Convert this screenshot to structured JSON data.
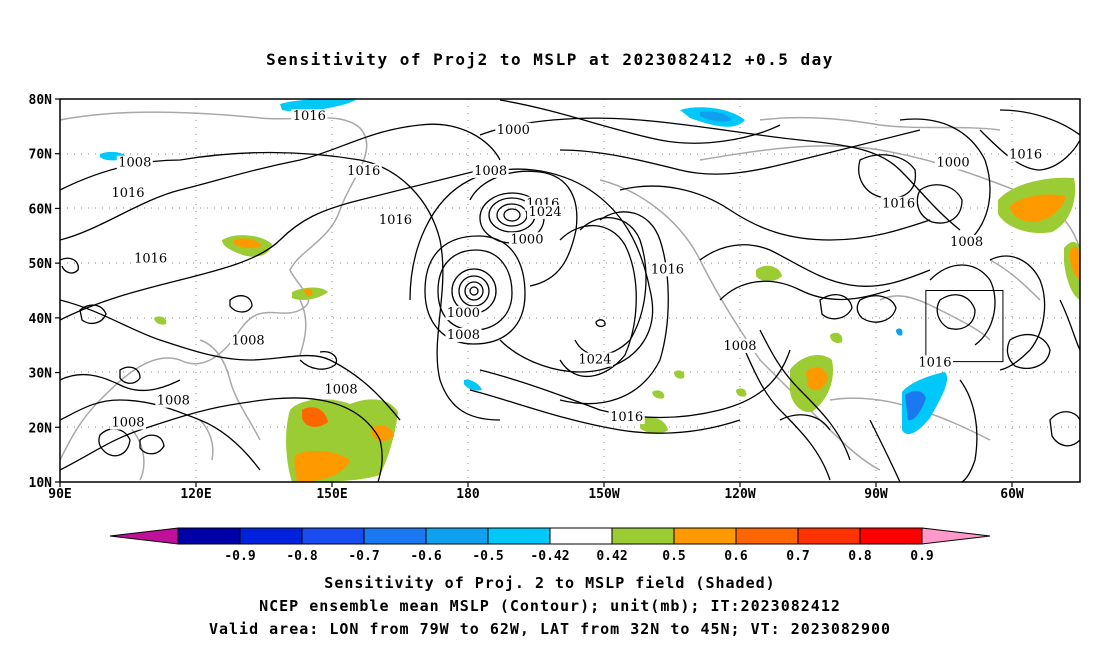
{
  "title": "Sensitivity of Proj2 to MSLP at 2023082412 +0.5 day",
  "lat_labels": [
    "80N",
    "70N",
    "60N",
    "50N",
    "40N",
    "30N",
    "20N",
    "10N"
  ],
  "lon_labels": [
    "90E",
    "120E",
    "150E",
    "180",
    "150W",
    "120W",
    "90W",
    "60W"
  ],
  "colorbar": {
    "labels": [
      "-0.9",
      "-0.8",
      "-0.7",
      "-0.6",
      "-0.5",
      "-0.42",
      "0.42",
      "0.5",
      "0.6",
      "0.7",
      "0.8",
      "0.9"
    ],
    "colors": [
      "#c0109a",
      "#0000a8",
      "#0022dd",
      "#1a4cf0",
      "#1a78f0",
      "#10a0f0",
      "#00c8f8",
      "#ffffff",
      "#9ccc33",
      "#ff9900",
      "#ff6600",
      "#ff3300",
      "#ff0000",
      "#ff99cc"
    ]
  },
  "contour_labels": [
    {
      "text": "1016",
      "lon": 145,
      "lat": 76.5
    },
    {
      "text": "1008",
      "lon": 106.5,
      "lat": 68
    },
    {
      "text": "1016",
      "lon": 157,
      "lat": 66.5
    },
    {
      "text": "1016",
      "lon": 105,
      "lat": 62.5
    },
    {
      "text": "1008",
      "lon": 185,
      "lat": 66.5
    },
    {
      "text": "1000",
      "lon": 190,
      "lat": 74
    },
    {
      "text": "1016",
      "lon": 164,
      "lat": 57.5
    },
    {
      "text": "1000",
      "lon": 193,
      "lat": 54
    },
    {
      "text": "1016",
      "lon": 196.5,
      "lat": 60.5
    },
    {
      "text": "1024",
      "lon": 197,
      "lat": 59
    },
    {
      "text": "1016",
      "lon": 110,
      "lat": 50.5
    },
    {
      "text": "1000",
      "lon": 179,
      "lat": 40.5
    },
    {
      "text": "1008",
      "lon": 179,
      "lat": 36.5
    },
    {
      "text": "1008",
      "lon": 131.5,
      "lat": 35.5
    },
    {
      "text": "1024",
      "lon": 208,
      "lat": 32
    },
    {
      "text": "1016",
      "lon": 224,
      "lat": 48.5
    },
    {
      "text": "1008",
      "lon": 240,
      "lat": 34.5
    },
    {
      "text": "1016",
      "lon": 275,
      "lat": 60.5
    },
    {
      "text": "1000",
      "lon": 287,
      "lat": 68
    },
    {
      "text": "1008",
      "lon": 290,
      "lat": 53.5
    },
    {
      "text": "1016",
      "lon": 303,
      "lat": 69.5
    },
    {
      "text": "1016",
      "lon": 283,
      "lat": 31.5
    },
    {
      "text": "1008",
      "lon": 152,
      "lat": 26.5
    },
    {
      "text": "1008",
      "lon": 115,
      "lat": 24.5
    },
    {
      "text": "1008",
      "lon": 105,
      "lat": 20.5
    },
    {
      "text": "1016",
      "lon": 215,
      "lat": 21.5
    }
  ],
  "valid_box": {
    "lon_min": -79,
    "lon_max": -62,
    "lat_min": 32,
    "lat_max": 45
  },
  "footer": [
    "Sensitivity of Proj. 2 to MSLP field (Shaded)",
    "NCEP ensemble mean MSLP (Contour); unit(mb); IT:2023082412",
    "Valid area: LON from 79W to 62W, LAT from 32N to 45N; VT: 2023082900"
  ]
}
